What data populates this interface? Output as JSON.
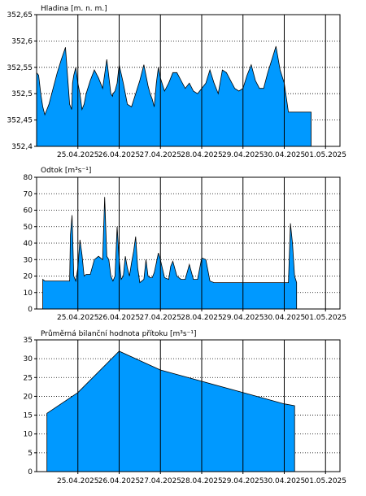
{
  "chart_data": [
    {
      "type": "area",
      "title": "Hladina [m. n. m.]",
      "ylim": [
        352.4,
        352.65
      ],
      "yticks": [
        352.4,
        352.45,
        352.5,
        352.55,
        352.6,
        352.65
      ],
      "ytick_labels": [
        "352,4",
        "352,45",
        "352,5",
        "352,55",
        "352,6",
        "352,65"
      ],
      "xlim": [
        0,
        7.35
      ],
      "xtick_labels": [
        "25.04.2025",
        "26.04.2025",
        "27.04.2025",
        "28.04.2025",
        "29.04.2025",
        "30.04.2025",
        "01.05.2025"
      ],
      "grid": true,
      "series": [
        {
          "x": [
            0.0,
            0.05,
            0.1,
            0.15,
            0.2,
            0.25,
            0.3,
            0.4,
            0.5,
            0.6,
            0.7,
            0.8,
            0.85,
            0.87,
            0.9,
            0.95,
            1.0,
            1.05,
            1.1,
            1.15,
            1.2,
            1.3,
            1.4,
            1.5,
            1.6,
            1.7,
            1.8,
            1.84,
            1.85,
            1.9,
            1.95,
            2.0,
            2.1,
            2.2,
            2.3,
            2.4,
            2.5,
            2.6,
            2.7,
            2.75,
            2.8,
            2.85,
            2.9,
            2.95,
            3.0,
            3.1,
            3.2,
            3.3,
            3.4,
            3.5,
            3.6,
            3.7,
            3.8,
            3.9,
            4.0,
            4.1,
            4.2,
            4.3,
            4.4,
            4.5,
            4.6,
            4.7,
            4.8,
            4.9,
            5.0,
            5.1,
            5.2,
            5.3,
            5.4,
            5.5,
            5.6,
            5.7,
            5.8,
            5.9,
            6.0,
            6.1,
            6.2,
            6.3,
            6.4,
            6.45,
            6.5,
            6.55,
            6.6,
            6.65
          ],
          "y": [
            352.54,
            352.535,
            352.5,
            352.475,
            352.46,
            352.47,
            352.48,
            352.51,
            352.54,
            352.565,
            352.588,
            352.48,
            352.47,
            352.52,
            352.535,
            352.55,
            352.52,
            352.5,
            352.47,
            352.48,
            352.5,
            352.525,
            352.545,
            352.53,
            352.51,
            352.565,
            352.5,
            352.495,
            352.5,
            352.505,
            352.52,
            352.555,
            352.52,
            352.48,
            352.475,
            352.5,
            352.525,
            352.555,
            352.515,
            352.5,
            352.49,
            352.475,
            352.52,
            352.55,
            352.53,
            352.505,
            352.52,
            352.54,
            352.54,
            352.525,
            352.51,
            352.52,
            352.505,
            352.5,
            352.51,
            352.52,
            352.545,
            352.52,
            352.5,
            352.545,
            352.54,
            352.525,
            352.51,
            352.505,
            352.51,
            352.535,
            352.555,
            352.525,
            352.51,
            352.51,
            352.54,
            352.565,
            352.59,
            352.545,
            352.52,
            352.465,
            352.465,
            352.465,
            352.465,
            352.465,
            352.465,
            352.465,
            352.465,
            352.465
          ]
        }
      ]
    },
    {
      "type": "area",
      "title": "Odtok [m³s⁻¹]",
      "ylim": [
        0,
        80
      ],
      "yticks": [
        0,
        10,
        20,
        30,
        40,
        50,
        60,
        70,
        80
      ],
      "ytick_labels": [
        "0",
        "10",
        "20",
        "30",
        "40",
        "50",
        "60",
        "70",
        "80"
      ],
      "xlim": [
        0,
        7.35
      ],
      "xtick_labels": [
        "25.04.2025",
        "26.04.2025",
        "27.04.2025",
        "28.04.2025",
        "29.04.2025",
        "30.04.2025",
        "01.05.2025"
      ],
      "grid": true,
      "series": [
        {
          "x": [
            0.15,
            0.2,
            0.8,
            0.82,
            0.86,
            0.9,
            0.95,
            1.0,
            1.05,
            1.1,
            1.15,
            1.2,
            1.3,
            1.4,
            1.5,
            1.6,
            1.65,
            1.7,
            1.75,
            1.8,
            1.85,
            1.9,
            1.95,
            2.0,
            2.05,
            2.1,
            2.15,
            2.2,
            2.25,
            2.3,
            2.35,
            2.4,
            2.45,
            2.5,
            2.55,
            2.6,
            2.65,
            2.7,
            2.75,
            2.8,
            2.85,
            2.9,
            2.95,
            3.0,
            3.1,
            3.2,
            3.25,
            3.3,
            3.4,
            3.5,
            3.6,
            3.7,
            3.8,
            3.9,
            4.0,
            4.1,
            4.2,
            4.3,
            4.4,
            4.5,
            4.6,
            4.7,
            4.8,
            4.9,
            5.0,
            5.2,
            5.4,
            5.6,
            5.8,
            6.0,
            6.1,
            6.15,
            6.2,
            6.25,
            6.3
          ],
          "y": [
            18,
            17,
            17,
            45,
            57,
            20,
            17,
            25,
            42,
            33,
            20,
            21,
            21,
            30,
            32,
            30,
            68,
            32,
            30,
            20,
            17,
            20,
            50,
            30,
            18,
            20,
            32,
            25,
            20,
            28,
            35,
            44,
            25,
            16,
            17,
            18,
            30,
            20,
            19,
            19,
            22,
            28,
            34,
            30,
            19,
            18,
            26,
            29,
            20,
            18,
            18,
            27,
            18,
            18,
            31,
            30,
            17,
            16,
            16,
            16,
            16,
            16,
            16,
            16,
            16,
            16,
            16,
            16,
            16,
            16,
            16,
            52,
            40,
            20,
            16
          ]
        }
      ]
    },
    {
      "type": "area",
      "title": "Průměrná bilanční hodnota přítoku   [m³s⁻¹]",
      "ylim": [
        0,
        35
      ],
      "yticks": [
        0,
        5,
        10,
        15,
        20,
        25,
        30,
        35
      ],
      "ytick_labels": [
        "0",
        "5",
        "10",
        "15",
        "20",
        "25",
        "30",
        "35"
      ],
      "xlim": [
        0,
        7.35
      ],
      "xtick_labels": [
        "25.04.2025",
        "26.04.2025",
        "27.04.2025",
        "28.04.2025",
        "29.04.2025",
        "30.04.2025",
        "01.05.2025"
      ],
      "grid": true,
      "series": [
        {
          "x": [
            0.25,
            1.0,
            2.0,
            3.0,
            4.0,
            5.0,
            6.0,
            6.25
          ],
          "y": [
            15.5,
            21.0,
            32.0,
            27.0,
            24.0,
            21.0,
            18.0,
            17.5
          ]
        }
      ]
    }
  ]
}
